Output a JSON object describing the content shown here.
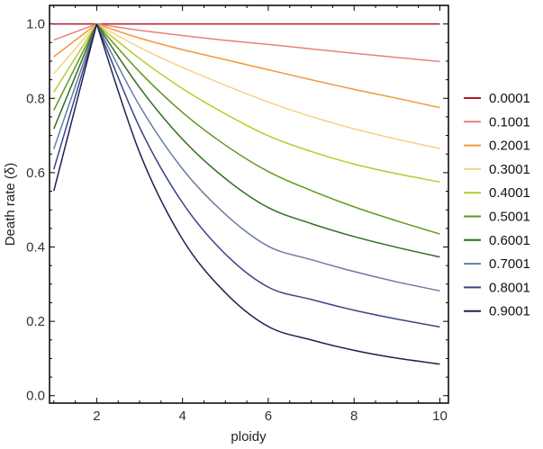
{
  "chart_data": {
    "type": "line",
    "xlabel": "ploidy",
    "ylabel": "Death rate (δ)",
    "xlim": [
      0.9,
      10.2
    ],
    "ylim": [
      -0.02,
      1.05
    ],
    "x_ticks": [
      2,
      4,
      6,
      8,
      10
    ],
    "x_tick_labels": [
      "2",
      "4",
      "6",
      "8",
      "10"
    ],
    "y_ticks": [
      0.0,
      0.2,
      0.4,
      0.6,
      0.8,
      1.0
    ],
    "y_tick_labels": [
      "0.0",
      "0.2",
      "0.4",
      "0.6",
      "0.8",
      "1.0"
    ],
    "grid": false,
    "legend_position": "right",
    "x": [
      1,
      2,
      3,
      4,
      5,
      6,
      7,
      8,
      9,
      10
    ],
    "series": [
      {
        "name": "0.0001",
        "color": "#b2182b",
        "values": [
          1.0,
          1.0,
          1.0,
          1.0,
          1.0,
          1.0,
          1.0,
          1.0,
          1.0,
          1.0
        ]
      },
      {
        "name": "0.1001",
        "color": "#e8807a",
        "values": [
          0.957,
          1.0,
          0.983,
          0.969,
          0.956,
          0.945,
          0.933,
          0.921,
          0.91,
          0.899
        ]
      },
      {
        "name": "0.2001",
        "color": "#f09a3c",
        "values": [
          0.912,
          1.0,
          0.962,
          0.931,
          0.904,
          0.877,
          0.85,
          0.824,
          0.8,
          0.775
        ]
      },
      {
        "name": "0.3001",
        "color": "#f8d08a",
        "values": [
          0.866,
          1.0,
          0.937,
          0.883,
          0.835,
          0.79,
          0.751,
          0.718,
          0.69,
          0.665
        ]
      },
      {
        "name": "0.4001",
        "color": "#b6cc2a",
        "values": [
          0.817,
          1.0,
          0.907,
          0.826,
          0.758,
          0.699,
          0.657,
          0.623,
          0.597,
          0.575
        ]
      },
      {
        "name": "0.5001",
        "color": "#5e9a1e",
        "values": [
          0.768,
          1.0,
          0.871,
          0.762,
          0.674,
          0.603,
          0.552,
          0.508,
          0.47,
          0.435
        ]
      },
      {
        "name": "0.6001",
        "color": "#2f6d1f",
        "values": [
          0.718,
          1.0,
          0.829,
          0.69,
          0.584,
          0.506,
          0.463,
          0.428,
          0.399,
          0.373
        ]
      },
      {
        "name": "0.7001",
        "color": "#6b7ba3",
        "values": [
          0.664,
          1.0,
          0.78,
          0.61,
          0.488,
          0.402,
          0.366,
          0.334,
          0.306,
          0.282
        ]
      },
      {
        "name": "0.8001",
        "color": "#3a4684",
        "values": [
          0.609,
          1.0,
          0.722,
          0.519,
          0.381,
          0.292,
          0.259,
          0.23,
          0.206,
          0.185
        ]
      },
      {
        "name": "0.9001",
        "color": "#1f2150",
        "values": [
          0.551,
          1.0,
          0.654,
          0.421,
          0.277,
          0.186,
          0.15,
          0.122,
          0.101,
          0.085
        ]
      }
    ]
  }
}
